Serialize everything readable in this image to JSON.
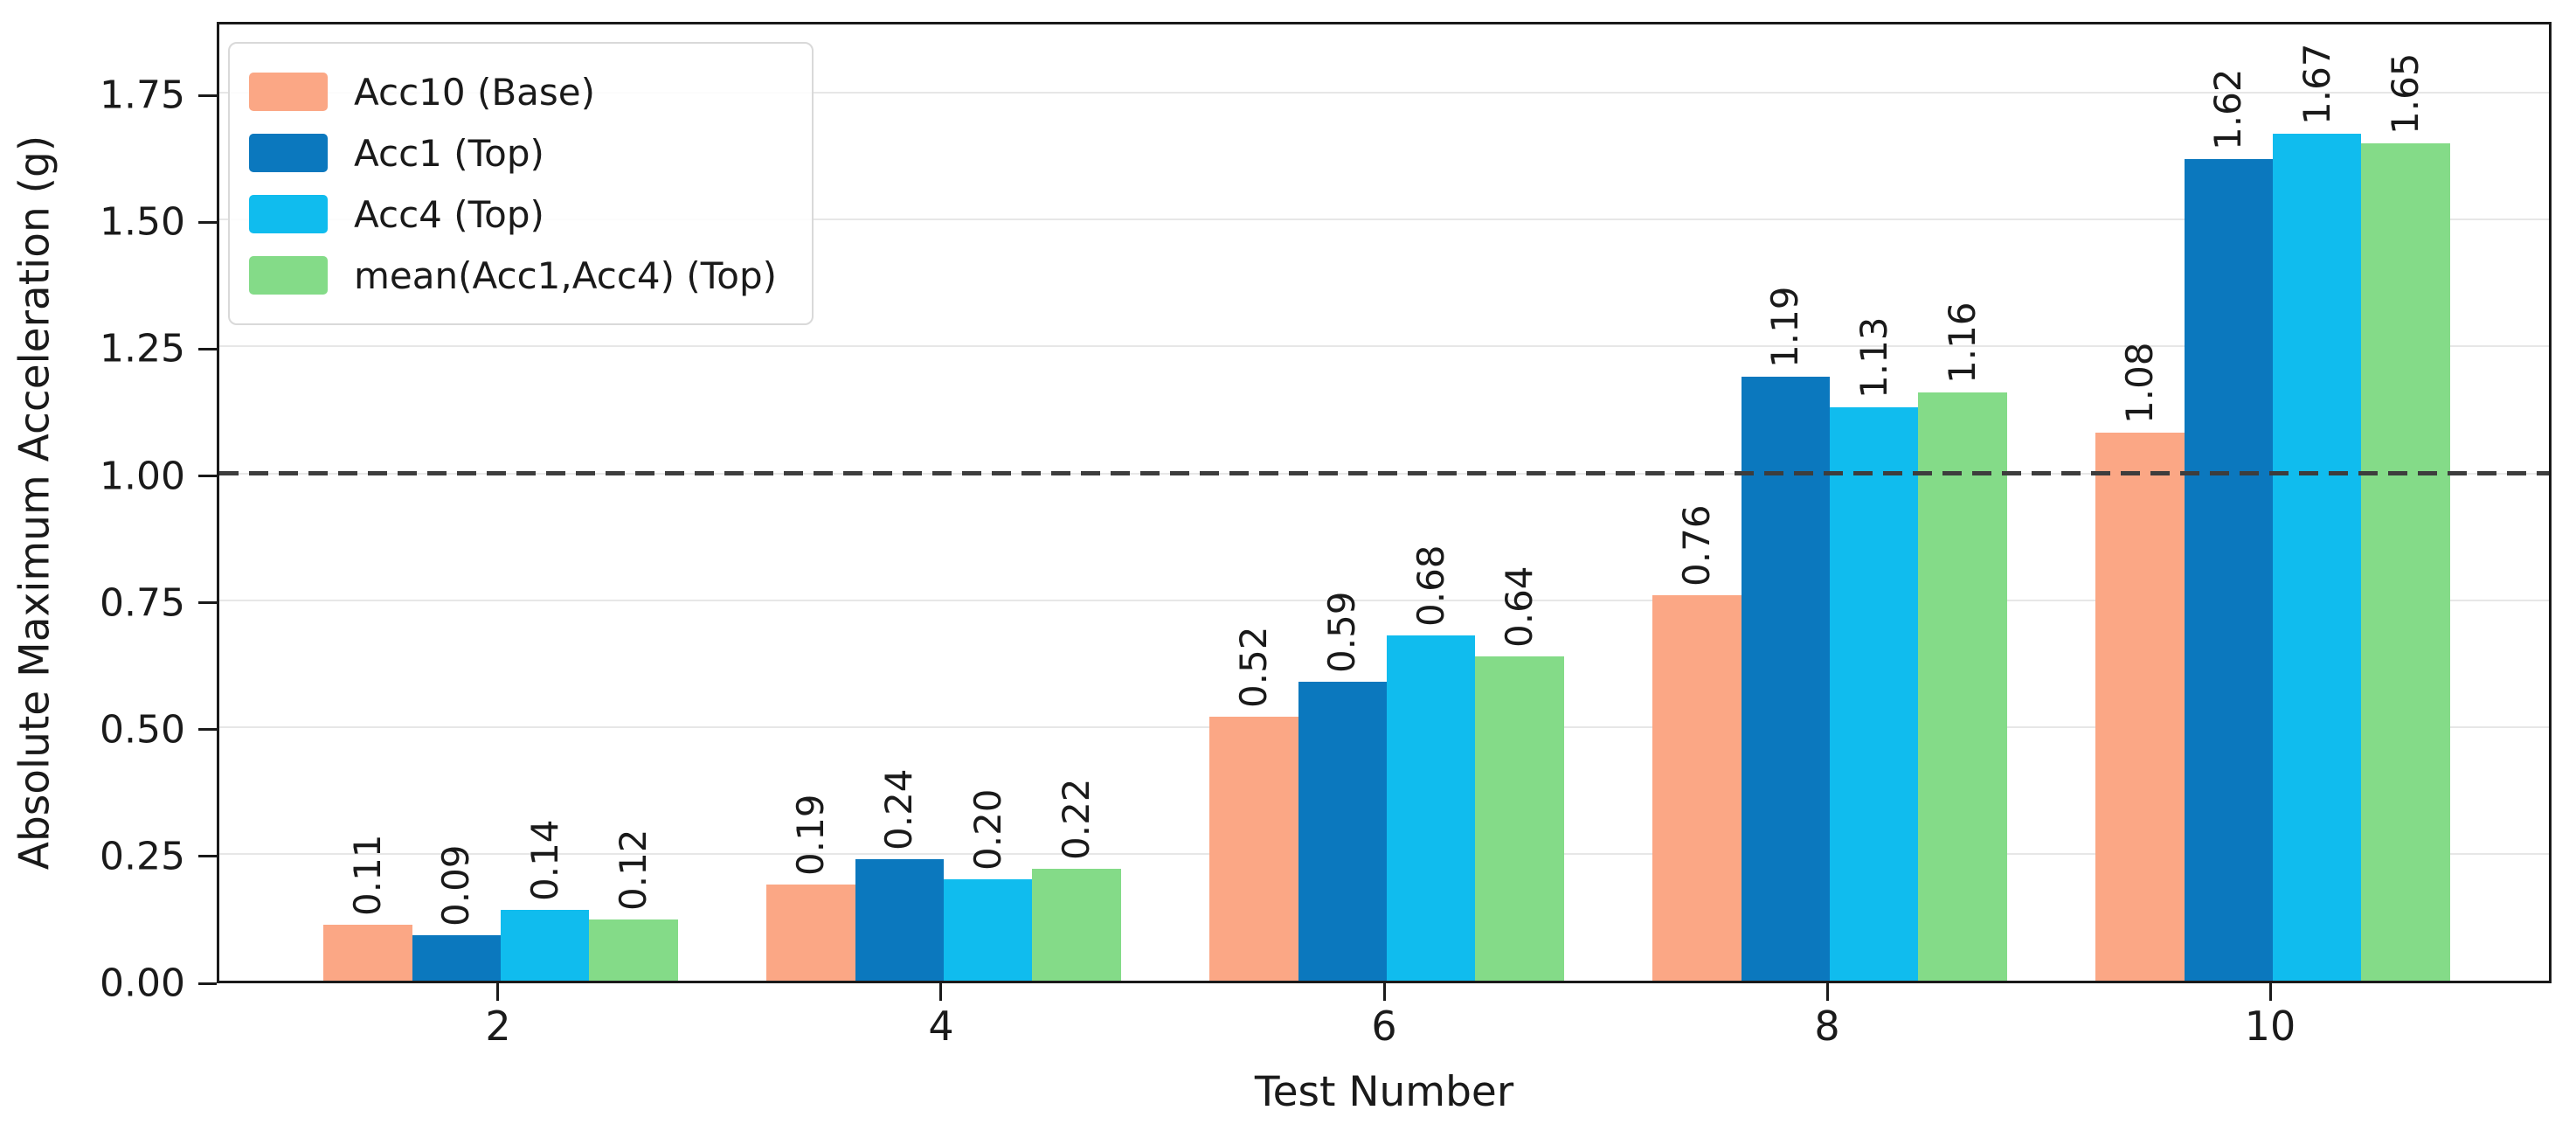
{
  "chart_data": {
    "type": "bar",
    "title": "",
    "xlabel": "Test Number",
    "ylabel": "Absolute Maximum Acceleration (g)",
    "categories": [
      "2",
      "4",
      "6",
      "8",
      "10"
    ],
    "x_positions": [
      2,
      4,
      6,
      8,
      10
    ],
    "series": [
      {
        "name": "Acc10 (Base)",
        "color": "#FBA785",
        "values": [
          0.11,
          0.19,
          0.52,
          0.76,
          1.08
        ]
      },
      {
        "name": "Acc1 (Top)",
        "color": "#0B78BE",
        "values": [
          0.09,
          0.24,
          0.59,
          1.19,
          1.62
        ]
      },
      {
        "name": "Acc4 (Top)",
        "color": "#10BCEE",
        "values": [
          0.14,
          0.2,
          0.68,
          1.13,
          1.67
        ]
      },
      {
        "name": "mean(Acc1,Acc4) (Top)",
        "color": "#84DB88",
        "values": [
          0.12,
          0.22,
          0.64,
          1.16,
          1.65
        ]
      }
    ],
    "value_labels": [
      [
        "0.11",
        "0.19",
        "0.52",
        "0.76",
        "1.08"
      ],
      [
        "0.09",
        "0.24",
        "0.59",
        "1.19",
        "1.62"
      ],
      [
        "0.14",
        "0.20",
        "0.68",
        "1.13",
        "1.67"
      ],
      [
        "0.12",
        "0.22",
        "0.64",
        "1.16",
        "1.65"
      ]
    ],
    "ytick_labels": [
      "0.00",
      "0.25",
      "0.50",
      "0.75",
      "1.00",
      "1.25",
      "1.50",
      "1.75"
    ],
    "yticks": [
      0,
      0.25,
      0.5,
      0.75,
      1.0,
      1.25,
      1.5,
      1.75
    ],
    "ylim": [
      0,
      1.895
    ],
    "xlim": [
      0.73,
      11.27
    ],
    "bar_width_units": 0.4,
    "threshold": {
      "y": 1.0,
      "style": "dashed",
      "color": "#3d3d3d"
    },
    "grid": true,
    "legend_position": "upper left",
    "colors": {
      "spine": "#1a1a1a",
      "gridline": "#e7e7e7",
      "background": "#ffffff"
    }
  }
}
